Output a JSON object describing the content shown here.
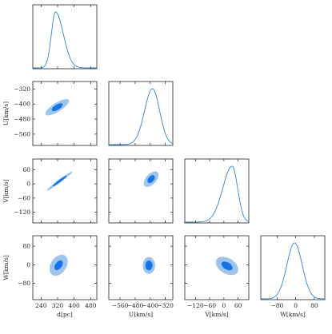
{
  "colors": {
    "line": "#2f86d6",
    "contour_outer": "#9ec4ec",
    "contour_inner": "#1473e6",
    "frame": "#222222"
  },
  "chart_data": {
    "type": "corner",
    "grid": false,
    "parameters": [
      {
        "key": "d",
        "label": "d[pc]",
        "range": [
          200,
          510
        ],
        "ticks": [
          240,
          320,
          400,
          480
        ]
      },
      {
        "key": "U",
        "label": "U[km/s]",
        "range": [
          -620,
          -280
        ],
        "ticks": [
          -560,
          -480,
          -400,
          -320
        ]
      },
      {
        "key": "V",
        "label": "V[km/s]",
        "range": [
          -165,
          105
        ],
        "ticks": [
          -120,
          -60,
          0,
          60
        ]
      },
      {
        "key": "W",
        "label": "W[km/s]",
        "range": [
          -150,
          125
        ],
        "ticks": [
          -80,
          0,
          80
        ]
      }
    ],
    "tick_labels": {
      "d": [
        "240",
        "320",
        "400",
        "480"
      ],
      "U": [
        "−560",
        "−480",
        "−400",
        "−320"
      ],
      "V": [
        "−120",
        "−60",
        "0",
        "60"
      ],
      "W": [
        "−80",
        "0",
        "80"
      ]
    },
    "axis_labels": {
      "x": [
        "d[pc]",
        "U[km/s]",
        "V[km/s]",
        "W[km/s]"
      ],
      "y": [
        "U[km/s]",
        "V[km/s]",
        "W[km/s]"
      ]
    },
    "marginals": [
      {
        "param": "d",
        "peak": 310,
        "sigma_left": 20,
        "sigma_right": 38
      },
      {
        "param": "U",
        "peak": -388,
        "sigma_left": 42,
        "sigma_right": 38
      },
      {
        "param": "V",
        "peak": 35,
        "sigma_left": 40,
        "sigma_right": 23
      },
      {
        "param": "W",
        "peak": -5,
        "sigma_left": 33,
        "sigma_right": 33
      }
    ],
    "contours": [
      {
        "row": "U",
        "col": "d",
        "center": [
          318,
          -417
        ],
        "angle_deg": 35,
        "outer": [
          68,
          23
        ],
        "inner": [
          31,
          13
        ]
      },
      {
        "row": "V",
        "col": "d",
        "center": [
          330,
          12
        ],
        "angle_deg": 33,
        "outer": [
          74,
          7
        ],
        "inner": [
          40,
          5
        ]
      },
      {
        "row": "V",
        "col": "U",
        "center": [
          -395,
          20
        ],
        "angle_deg": 36,
        "outer": [
          45,
          24
        ],
        "inner": [
          22,
          13
        ]
      },
      {
        "row": "W",
        "col": "d",
        "center": [
          325,
          -2
        ],
        "angle_deg": 47,
        "outer": [
          52,
          36
        ],
        "inner": [
          25,
          15
        ]
      },
      {
        "row": "W",
        "col": "U",
        "center": [
          -407,
          -3
        ],
        "angle_deg": 0,
        "outer": [
          33,
          36
        ],
        "inner": [
          19,
          21
        ]
      },
      {
        "row": "W",
        "col": "V",
        "center": [
          13,
          -5
        ],
        "angle_deg": -32,
        "outer": [
          52,
          33
        ],
        "inner": [
          26,
          15
        ]
      }
    ]
  }
}
